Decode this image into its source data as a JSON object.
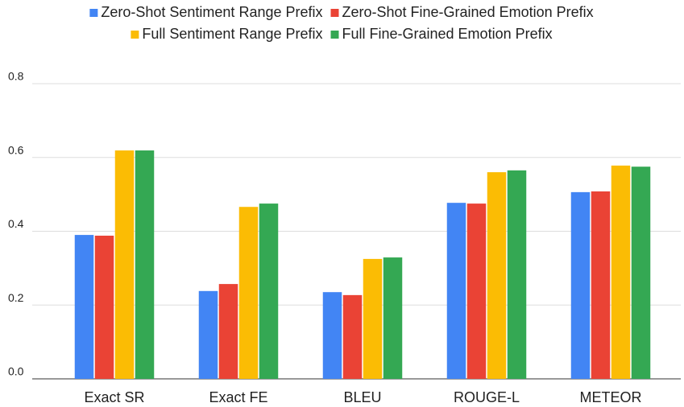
{
  "chart_data": {
    "type": "bar",
    "categories": [
      "Exact SR",
      "Exact FE",
      "BLEU",
      "ROUGE-L",
      "METEOR"
    ],
    "series": [
      {
        "name": "Zero-Shot Sentiment Range Prefix",
        "color": "#4285f4",
        "values": [
          0.39,
          0.238,
          0.235,
          0.477,
          0.506
        ]
      },
      {
        "name": "Zero-Shot Fine-Grained Emotion Prefix",
        "color": "#ea4335",
        "values": [
          0.388,
          0.257,
          0.227,
          0.475,
          0.508
        ]
      },
      {
        "name": "Full Sentiment Range Prefix",
        "color": "#fbbc04",
        "values": [
          0.619,
          0.466,
          0.325,
          0.56,
          0.578
        ]
      },
      {
        "name": "Full Fine-Grained Emotion Prefix",
        "color": "#34a853",
        "values": [
          0.619,
          0.475,
          0.329,
          0.565,
          0.575
        ]
      }
    ],
    "ylim": [
      0,
      0.8
    ],
    "yticks": [
      {
        "value": 0,
        "label": "0.0"
      },
      0.2,
      0.4,
      0.6,
      0.8
    ],
    "grid": true,
    "legend": "top"
  }
}
